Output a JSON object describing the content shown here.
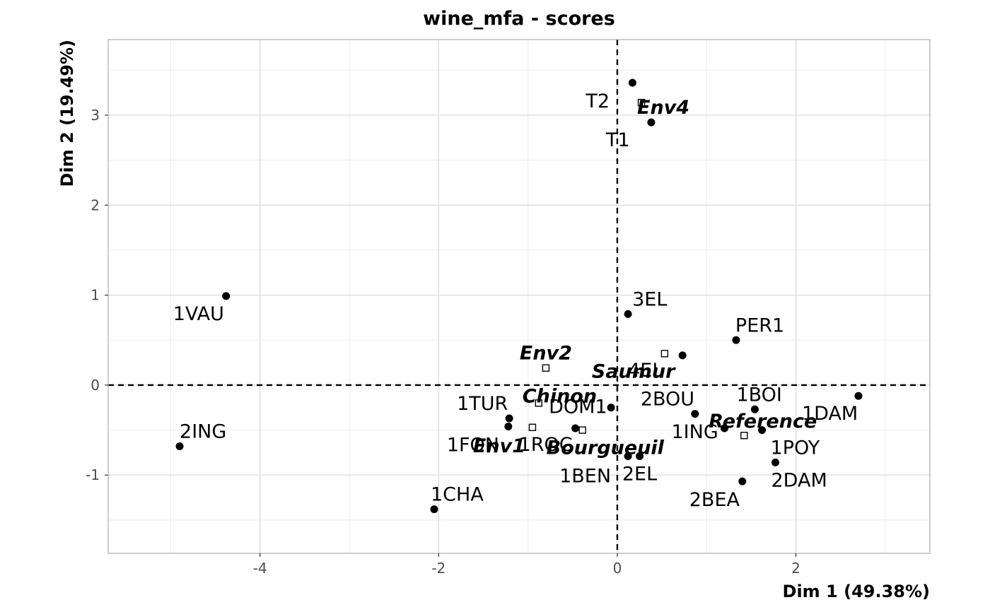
{
  "chart_data": {
    "type": "scatter",
    "title": "wine_mfa - scores",
    "xlabel": "Dim 1 (49.38%)",
    "ylabel": "Dim 2 (19.49%)",
    "xlim": [
      -5.7,
      3.5
    ],
    "ylim": [
      -1.87,
      3.84
    ],
    "x_ticks": [
      -4,
      -2,
      0,
      2
    ],
    "x_tick_labels": [
      "-4",
      "-2",
      "0",
      "2"
    ],
    "y_ticks": [
      -1,
      0,
      1,
      2,
      3
    ],
    "y_tick_labels": [
      "-1",
      "0",
      "1",
      "2",
      "3"
    ],
    "grid": true,
    "reference_lines": {
      "x": 0,
      "y": 0,
      "style": "dashed"
    },
    "series": [
      {
        "marker": "filled-circle",
        "points": [
          {
            "label": "2EL",
            "x": 0.25,
            "y": -0.79
          },
          {
            "label": "1CHA",
            "x": -2.05,
            "y": -1.38
          },
          {
            "label": "1FON",
            "x": -1.22,
            "y": -0.46
          },
          {
            "label": "1VAU",
            "x": -4.38,
            "y": 0.99
          },
          {
            "label": "1DAM",
            "x": 2.7,
            "y": -0.12
          },
          {
            "label": "2BOU",
            "x": 0.87,
            "y": -0.32
          },
          {
            "label": "1BOI",
            "x": 1.54,
            "y": -0.27
          },
          {
            "label": "3EL",
            "x": 0.12,
            "y": 0.79
          },
          {
            "label": "DOM1",
            "x": -0.07,
            "y": -0.25
          },
          {
            "label": "1TUR",
            "x": -1.21,
            "y": -0.37
          },
          {
            "label": "4EL",
            "x": 0.73,
            "y": 0.33
          },
          {
            "label": "PER1",
            "x": 1.33,
            "y": 0.5
          },
          {
            "label": "2DAM",
            "x": 1.77,
            "y": -0.86
          },
          {
            "label": "1POY",
            "x": 1.62,
            "y": -0.5
          },
          {
            "label": "1ING",
            "x": 1.2,
            "y": -0.48
          },
          {
            "label": "1BEN",
            "x": 0.12,
            "y": -0.79
          },
          {
            "label": "2BEA",
            "x": 1.4,
            "y": -1.07
          },
          {
            "label": "1ROC",
            "x": -0.47,
            "y": -0.48
          },
          {
            "label": "2ING",
            "x": -4.9,
            "y": -0.68
          },
          {
            "label": "T1",
            "x": 0.38,
            "y": 2.92
          },
          {
            "label": "T2",
            "x": 0.17,
            "y": 3.36
          }
        ]
      },
      {
        "marker": "open-square",
        "points": [
          {
            "label": "Env4",
            "x": 0.27,
            "y": 3.14
          },
          {
            "label": "Env2",
            "x": -0.8,
            "y": 0.19
          },
          {
            "label": "Saumur",
            "x": 0.53,
            "y": 0.35
          },
          {
            "label": "Chinon",
            "x": -0.88,
            "y": -0.2
          },
          {
            "label": "Env1",
            "x": -0.95,
            "y": -0.47
          },
          {
            "label": "Bourgueuil",
            "x": -0.39,
            "y": -0.5
          },
          {
            "label": "Reference",
            "x": 1.42,
            "y": -0.56
          }
        ]
      }
    ]
  }
}
